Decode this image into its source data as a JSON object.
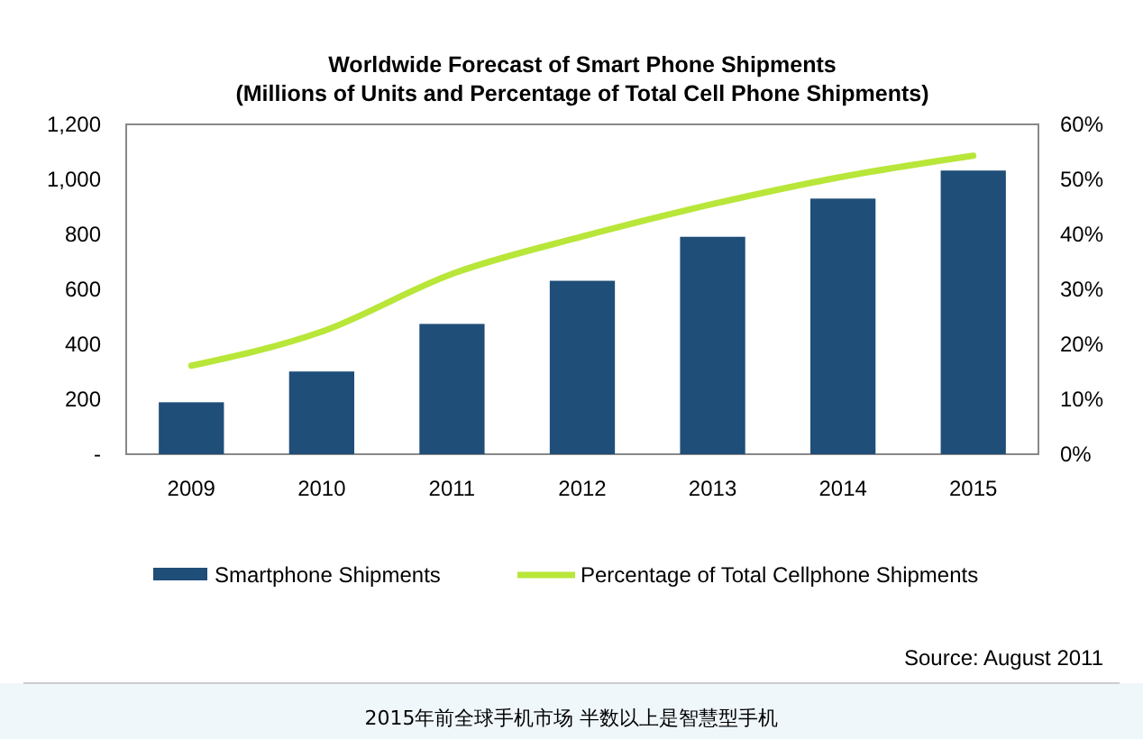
{
  "chart_data": {
    "type": "bar",
    "title": "Worldwide Forecast of Smart Phone Shipments",
    "subtitle": "(Millions of Units and Percentage of Total Cell Phone Shipments)",
    "categories": [
      "2009",
      "2010",
      "2011",
      "2012",
      "2013",
      "2014",
      "2015"
    ],
    "series": [
      {
        "name": "Smartphone Shipments",
        "color": "#1f4e79",
        "values": [
          189,
          301,
          474,
          631,
          791,
          930,
          1032
        ]
      },
      {
        "name": "Percentage of Total Cellphone Shipments",
        "type": "line",
        "axis": "y2",
        "color": "#b8e639",
        "values": [
          16.1,
          22.3,
          32.8,
          39.6,
          45.5,
          50.5,
          54.3
        ]
      }
    ],
    "ylim": [
      0,
      1200
    ],
    "yticks": [
      {
        "value": 0,
        "label": "-"
      },
      {
        "value": 200,
        "label": "200"
      },
      {
        "value": 400,
        "label": "400"
      },
      {
        "value": 600,
        "label": "600"
      },
      {
        "value": 800,
        "label": "800"
      },
      {
        "value": 1000,
        "label": "1,000"
      },
      {
        "value": 1200,
        "label": "1,200"
      }
    ],
    "y2lim": [
      0,
      60
    ],
    "y2ticks": [
      {
        "value": 0,
        "label": "0%"
      },
      {
        "value": 10,
        "label": "10%"
      },
      {
        "value": 20,
        "label": "20%"
      },
      {
        "value": 30,
        "label": "30%"
      },
      {
        "value": 40,
        "label": "40%"
      },
      {
        "value": 50,
        "label": "50%"
      },
      {
        "value": 60,
        "label": "60%"
      }
    ],
    "legend": "bottom",
    "grid": false,
    "annotations": [
      "Source: August 2011",
      "2015年前全球手机市场 半数以上是智慧型手机"
    ]
  }
}
